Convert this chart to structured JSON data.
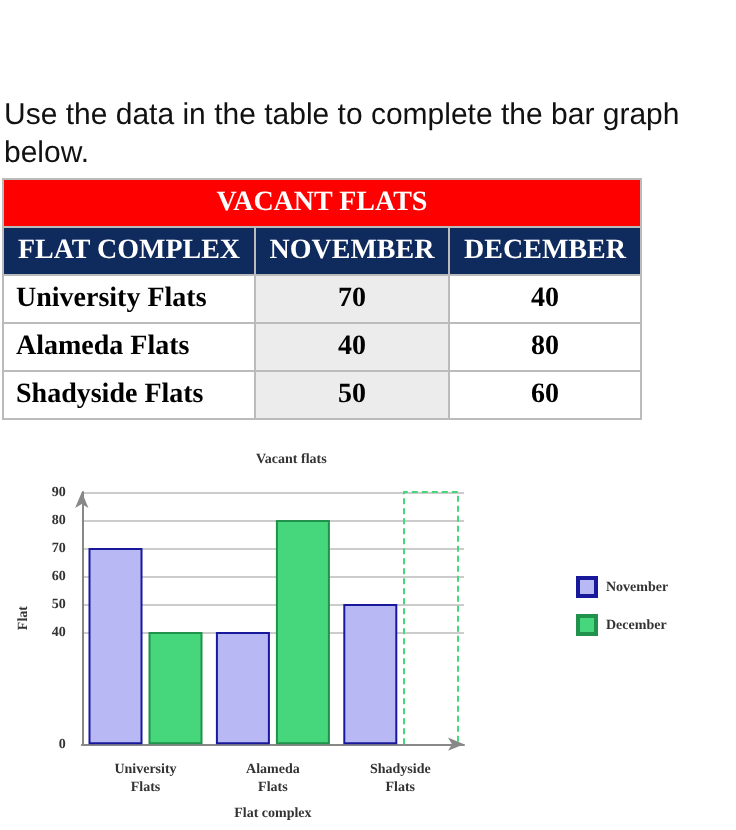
{
  "chart_data": {
    "type": "bar",
    "title": "Vacant flats",
    "xlabel": "Flat complex",
    "ylabel": "Flat",
    "categories": [
      "University Flats",
      "Alameda Flats",
      "Shadyside Flats"
    ],
    "series": [
      {
        "name": "November",
        "color": "#b8b8f4",
        "values": [
          70,
          40,
          50
        ]
      },
      {
        "name": "December",
        "color": "#46d67c",
        "values": [
          40,
          80,
          null
        ]
      }
    ],
    "ylim": [
      0,
      90
    ],
    "yticks": [
      0,
      40,
      50,
      60,
      70,
      80,
      90
    ],
    "grid": "y",
    "legend": "right",
    "annotations": [
      "Use the data in the table to complete the bar graph below.",
      "VACANT FLATS",
      "FLAT COMPLEX",
      "NOVEMBER",
      "DECEMBER",
      "University Flats",
      "70",
      "40",
      "Alameda Flats",
      "40",
      "80",
      "Shadyside Flats",
      "50",
      "60"
    ]
  }
}
